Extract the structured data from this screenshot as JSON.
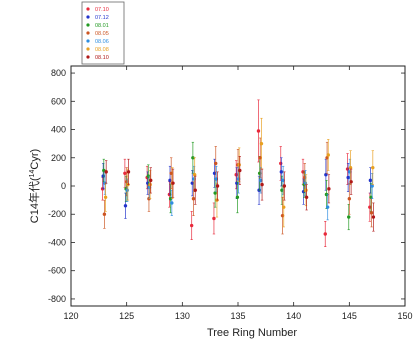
{
  "chart_data": {
    "type": "scatter",
    "title": "",
    "xlabel": "Tree Ring Number",
    "ylabel_prefix": "C14年代",
    "ylabel_paren_open": "(",
    "ylabel_superscript": "14",
    "ylabel_unit": "Cyr",
    "ylabel_paren_close": ")",
    "xlim": [
      120,
      150
    ],
    "ylim": [
      -850,
      850
    ],
    "xticks": [
      120,
      125,
      130,
      135,
      140,
      145,
      150
    ],
    "yticks": [
      800,
      600,
      400,
      200,
      0,
      -200,
      -400,
      -600,
      -800
    ],
    "grid": false,
    "legend_position": "top-left, outside plot",
    "series": [
      {
        "name": "07.10",
        "color": "#e8283a",
        "points": [
          {
            "x": 123,
            "y": -20,
            "err": 80
          },
          {
            "x": 125,
            "y": 90,
            "err": 100
          },
          {
            "x": 127,
            "y": 60,
            "err": 80
          },
          {
            "x": 129,
            "y": -60,
            "err": 90
          },
          {
            "x": 131,
            "y": -280,
            "err": 100
          },
          {
            "x": 133,
            "y": -230,
            "err": 110
          },
          {
            "x": 135,
            "y": 80,
            "err": 100
          },
          {
            "x": 137,
            "y": 390,
            "err": 220
          },
          {
            "x": 139,
            "y": 160,
            "err": 120
          },
          {
            "x": 141,
            "y": 100,
            "err": 90
          },
          {
            "x": 143,
            "y": -340,
            "err": 90
          },
          {
            "x": 145,
            "y": 120,
            "err": 110
          },
          {
            "x": 147,
            "y": -150,
            "err": 100
          }
        ]
      },
      {
        "name": "07.12",
        "color": "#2233cc",
        "points": [
          {
            "x": 123,
            "y": 70,
            "err": 90
          },
          {
            "x": 125,
            "y": -140,
            "err": 90
          },
          {
            "x": 127,
            "y": 20,
            "err": 80
          },
          {
            "x": 129,
            "y": 40,
            "err": 100
          },
          {
            "x": 131,
            "y": 20,
            "err": 90
          },
          {
            "x": 133,
            "y": 90,
            "err": 100
          },
          {
            "x": 135,
            "y": 20,
            "err": 110
          },
          {
            "x": 137,
            "y": -30,
            "err": 100
          },
          {
            "x": 139,
            "y": 100,
            "err": 100
          },
          {
            "x": 141,
            "y": -40,
            "err": 90
          },
          {
            "x": 143,
            "y": 80,
            "err": 110
          },
          {
            "x": 145,
            "y": 60,
            "err": 100
          },
          {
            "x": 147,
            "y": 40,
            "err": 90
          }
        ]
      },
      {
        "name": "08.01",
        "color": "#229922",
        "points": [
          {
            "x": 123,
            "y": 110,
            "err": 80
          },
          {
            "x": 125,
            "y": -20,
            "err": 90
          },
          {
            "x": 127,
            "y": 70,
            "err": 80
          },
          {
            "x": 129,
            "y": -90,
            "err": 100
          },
          {
            "x": 131,
            "y": 200,
            "err": 110
          },
          {
            "x": 133,
            "y": -50,
            "err": 100
          },
          {
            "x": 135,
            "y": -80,
            "err": 110
          },
          {
            "x": 137,
            "y": 90,
            "err": 120
          },
          {
            "x": 139,
            "y": -30,
            "err": 100
          },
          {
            "x": 141,
            "y": 10,
            "err": 90
          },
          {
            "x": 143,
            "y": -60,
            "err": 100
          },
          {
            "x": 145,
            "y": -220,
            "err": 90
          },
          {
            "x": 147,
            "y": -80,
            "err": 100
          }
        ]
      },
      {
        "name": "08.05",
        "color": "#cc5522",
        "points": [
          {
            "x": 123,
            "y": -200,
            "err": 100
          },
          {
            "x": 125,
            "y": 30,
            "err": 100
          },
          {
            "x": 127,
            "y": -90,
            "err": 90
          },
          {
            "x": 129,
            "y": 90,
            "err": 110
          },
          {
            "x": 131,
            "y": -90,
            "err": 120
          },
          {
            "x": 133,
            "y": 160,
            "err": 120
          },
          {
            "x": 135,
            "y": 150,
            "err": 110
          },
          {
            "x": 137,
            "y": 200,
            "err": 140
          },
          {
            "x": 139,
            "y": -210,
            "err": 130
          },
          {
            "x": 141,
            "y": 60,
            "err": 100
          },
          {
            "x": 143,
            "y": 200,
            "err": 110
          },
          {
            "x": 145,
            "y": -90,
            "err": 110
          },
          {
            "x": 147,
            "y": -190,
            "err": 100
          }
        ]
      },
      {
        "name": "08.06",
        "color": "#2e8ee0",
        "points": [
          {
            "x": 123,
            "y": 20,
            "err": 80
          },
          {
            "x": 125,
            "y": -30,
            "err": 80
          },
          {
            "x": 127,
            "y": -10,
            "err": 80
          },
          {
            "x": 129,
            "y": -120,
            "err": 90
          },
          {
            "x": 131,
            "y": 50,
            "err": 90
          },
          {
            "x": 133,
            "y": 50,
            "err": 90
          },
          {
            "x": 135,
            "y": 50,
            "err": 100
          },
          {
            "x": 137,
            "y": 40,
            "err": 90
          },
          {
            "x": 139,
            "y": 40,
            "err": 100
          },
          {
            "x": 141,
            "y": 20,
            "err": 90
          },
          {
            "x": 143,
            "y": -150,
            "err": 90
          },
          {
            "x": 145,
            "y": 100,
            "err": 90
          },
          {
            "x": 147,
            "y": 0,
            "err": 90
          }
        ]
      },
      {
        "name": "08.08",
        "color": "#e8a020",
        "points": [
          {
            "x": 123,
            "y": -80,
            "err": 100
          },
          {
            "x": 125,
            "y": 10,
            "err": 110
          },
          {
            "x": 127,
            "y": 10,
            "err": 100
          },
          {
            "x": 129,
            "y": 20,
            "err": 110
          },
          {
            "x": 131,
            "y": 80,
            "err": 120
          },
          {
            "x": 133,
            "y": -100,
            "err": 120
          },
          {
            "x": 135,
            "y": 150,
            "err": 120
          },
          {
            "x": 137,
            "y": 300,
            "err": 180
          },
          {
            "x": 139,
            "y": -150,
            "err": 140
          },
          {
            "x": 141,
            "y": -30,
            "err": 110
          },
          {
            "x": 143,
            "y": 220,
            "err": 110
          },
          {
            "x": 145,
            "y": 130,
            "err": 120
          },
          {
            "x": 147,
            "y": 130,
            "err": 120
          }
        ]
      },
      {
        "name": "08.10",
        "color": "#b01818",
        "points": [
          {
            "x": 123,
            "y": 100,
            "err": 80
          },
          {
            "x": 125,
            "y": 100,
            "err": 90
          },
          {
            "x": 127,
            "y": 40,
            "err": 90
          },
          {
            "x": 129,
            "y": 20,
            "err": 100
          },
          {
            "x": 131,
            "y": -30,
            "err": 100
          },
          {
            "x": 133,
            "y": 0,
            "err": 100
          },
          {
            "x": 135,
            "y": 110,
            "err": 100
          },
          {
            "x": 137,
            "y": 10,
            "err": 110
          },
          {
            "x": 139,
            "y": 0,
            "err": 100
          },
          {
            "x": 141,
            "y": -80,
            "err": 90
          },
          {
            "x": 143,
            "y": -20,
            "err": 100
          },
          {
            "x": 145,
            "y": 30,
            "err": 90
          },
          {
            "x": 147,
            "y": -220,
            "err": 100
          }
        ]
      }
    ]
  }
}
